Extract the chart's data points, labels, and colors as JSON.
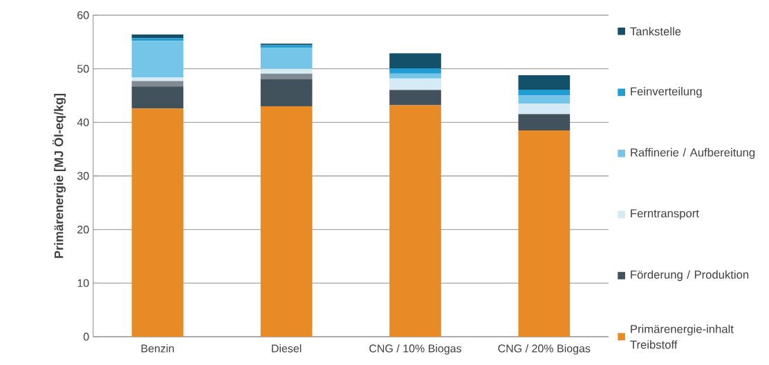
{
  "chart_data": {
    "type": "bar",
    "stacked": true,
    "ylabel": "Primärenergie [MJ Öl-eq/kg]",
    "categories": [
      "Benzin",
      "Diesel",
      "CNG / 10% Biogas",
      "CNG / 20% Biogas"
    ],
    "series": [
      {
        "name": "Primärenergie-inhalt Treibstoff",
        "color": "#e88a25",
        "values": [
          42.6,
          43.0,
          43.2,
          38.5
        ]
      },
      {
        "name": "Förderung / Produktion",
        "color": "#41525d",
        "values": [
          4.1,
          5.1,
          2.8,
          3.0
        ]
      },
      {
        "color": "#7f8a92",
        "values": [
          1.0,
          1.0,
          0.1,
          0.1
        ]
      },
      {
        "name": "Ferntransport",
        "color": "#d4ebf6",
        "values": [
          0.7,
          0.9,
          2.1,
          1.9
        ]
      },
      {
        "name": "Raffinerie / Aufbereitung",
        "color": "#74c5e8",
        "values": [
          6.8,
          3.9,
          0.9,
          1.5
        ]
      },
      {
        "name": "Feinverteilung",
        "color": "#229dd2",
        "values": [
          0.5,
          0.5,
          1.0,
          1.1
        ]
      },
      {
        "name": "Tankstelle",
        "color": "#13516b",
        "values": [
          0.7,
          0.3,
          2.8,
          2.7
        ]
      }
    ],
    "ylim": [
      0,
      60
    ],
    "yticks": [
      0,
      10,
      20,
      30,
      40,
      50,
      60
    ],
    "grid": "y",
    "legend": "right"
  }
}
